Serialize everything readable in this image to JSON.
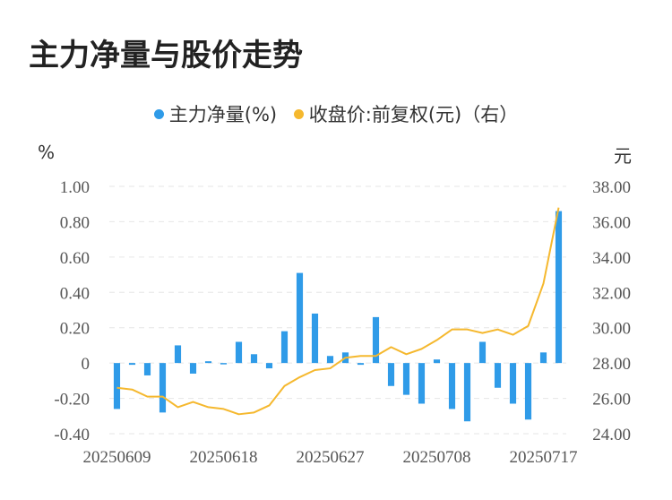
{
  "title": "主力净量与股价走势",
  "legend": [
    {
      "label": "主力净量(%)",
      "color": "#2f9be8"
    },
    {
      "label": "收盘价:前复权(元)（右）",
      "color": "#f5b82e"
    }
  ],
  "left_unit": "%",
  "right_unit": "元",
  "chart_data": {
    "type": "bar",
    "x_tick_labels": [
      "20250609",
      "20250618",
      "20250627",
      "20250708",
      "20250717"
    ],
    "x_tick_indices": [
      0,
      7,
      14,
      21,
      28
    ],
    "left_axis": {
      "ticks": [
        "1.00",
        "0.80",
        "0.60",
        "0.40",
        "0.20",
        "0",
        "-0.20",
        "-0.40"
      ],
      "ylim": [
        -0.4,
        1.0
      ]
    },
    "right_axis": {
      "ticks": [
        "38.00",
        "36.00",
        "34.00",
        "32.00",
        "30.00",
        "28.00",
        "26.00",
        "24.00"
      ],
      "ylim": [
        24,
        38
      ]
    },
    "grid": true,
    "legend_position": "top",
    "series": [
      {
        "name": "主力净量(%)",
        "type": "bar",
        "axis": "left",
        "color": "#2f9be8",
        "values": [
          -0.26,
          -0.01,
          -0.07,
          -0.28,
          0.1,
          -0.06,
          0.01,
          0.0,
          0.12,
          0.05,
          -0.03,
          0.18,
          0.51,
          0.28,
          0.04,
          0.06,
          -0.01,
          0.26,
          -0.13,
          -0.18,
          -0.23,
          0.02,
          -0.26,
          -0.33,
          0.12,
          -0.14,
          -0.23,
          -0.32,
          0.06,
          0.86
        ]
      },
      {
        "name": "收盘价:前复权(元)（右）",
        "type": "line",
        "axis": "right",
        "color": "#f5b82e",
        "values": [
          26.6,
          26.5,
          26.1,
          26.1,
          25.5,
          25.8,
          25.5,
          25.4,
          25.1,
          25.2,
          25.6,
          26.7,
          27.2,
          27.6,
          27.7,
          28.3,
          28.4,
          28.4,
          28.9,
          28.5,
          28.8,
          29.3,
          29.9,
          29.9,
          29.7,
          29.9,
          29.6,
          30.1,
          32.5,
          36.8
        ]
      }
    ]
  }
}
